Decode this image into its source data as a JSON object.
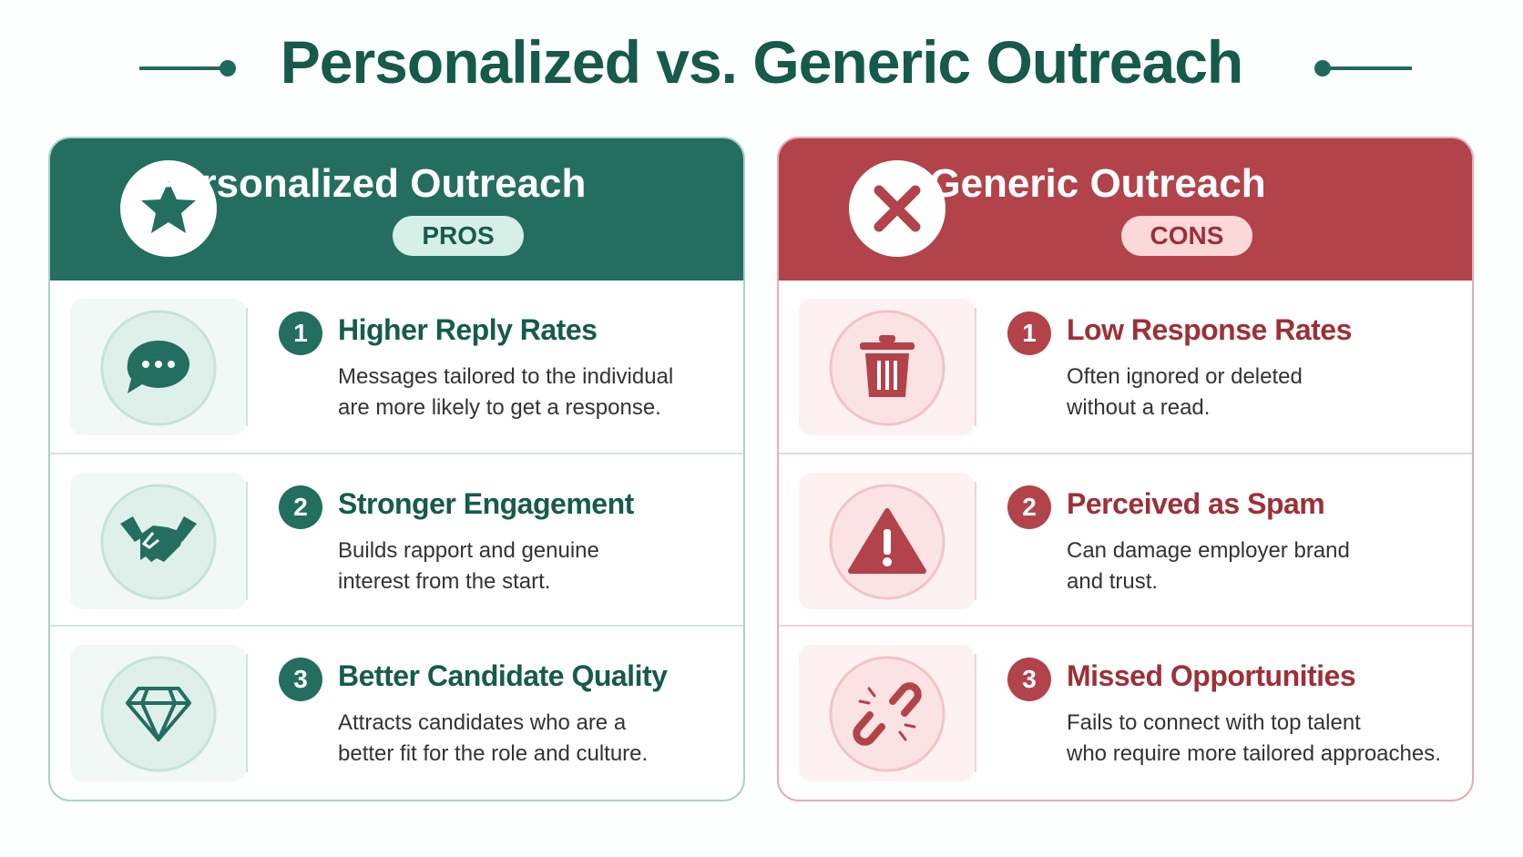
{
  "title": "Personalized vs. Generic Outreach",
  "panels": [
    {
      "title": "Personalized Outreach",
      "badge": "PROS",
      "items": [
        {
          "number": "1",
          "heading": "Higher Reply Rates",
          "text": [
            "Messages tailored to the individual",
            "are more likely to get a response."
          ]
        },
        {
          "number": "2",
          "heading": "Stronger Engagement",
          "text": [
            "Builds rapport and genuine",
            "interest from the start."
          ]
        },
        {
          "number": "3",
          "heading": "Better Candidate Quality",
          "text": [
            "Attracts candidates who are a",
            "better fit for the role and culture."
          ]
        }
      ]
    },
    {
      "title": "Generic Outreach",
      "badge": "CONS",
      "items": [
        {
          "number": "1",
          "heading": "Low Response Rates",
          "text": [
            "Often ignored or deleted",
            "without a read."
          ]
        },
        {
          "number": "2",
          "heading": "Perceived as Spam",
          "text": [
            "Can damage employer brand",
            "and trust."
          ]
        },
        {
          "number": "3",
          "heading": "Missed Opportunities",
          "text": [
            "Fails to connect with top talent",
            "who require more tailored approaches."
          ]
        }
      ]
    }
  ]
}
